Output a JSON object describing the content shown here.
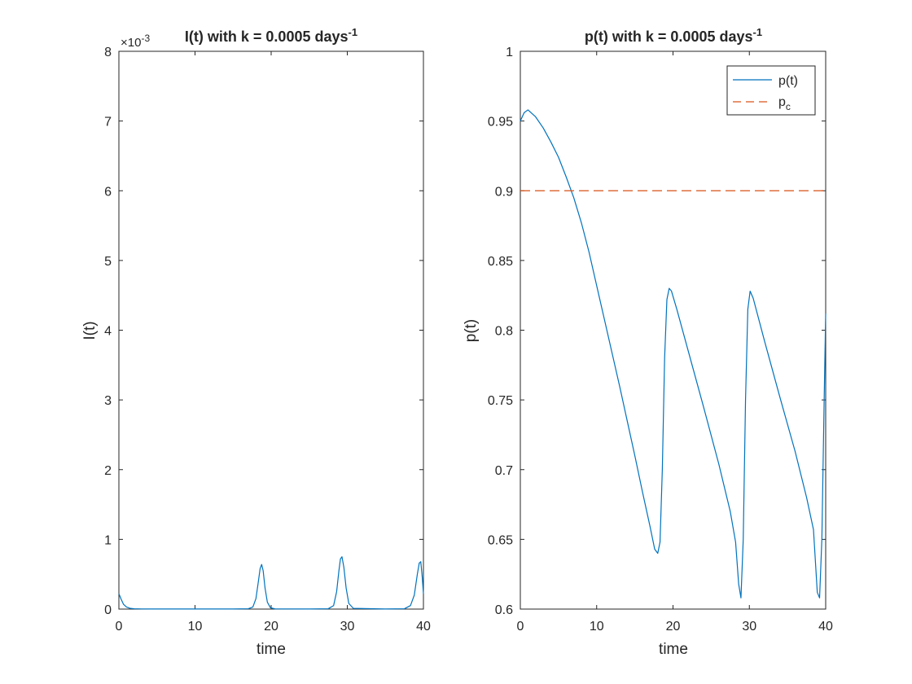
{
  "chart_data": [
    {
      "type": "line",
      "title_main": "I(t) with k = 0.0005 days",
      "title_sup": "-1",
      "xlabel": "time",
      "ylabel": "I(t)",
      "exponent_label": "×10",
      "exponent_sup": "-3",
      "xlim": [
        0,
        40
      ],
      "ylim": [
        0,
        8
      ],
      "xticks": [
        0,
        10,
        20,
        30,
        40
      ],
      "yticks": [
        0,
        1,
        2,
        3,
        4,
        5,
        6,
        7,
        8
      ],
      "grid": false,
      "y_scale_note": "values in units of 1e-3",
      "series": [
        {
          "color": "#0072BD",
          "x": [
            0,
            0.3,
            0.6,
            1.0,
            1.5,
            2.0,
            3.0,
            4.0,
            5.0,
            10.0,
            15.0,
            17.0,
            17.6,
            18.0,
            18.3,
            18.55,
            18.75,
            18.95,
            19.2,
            19.5,
            19.9,
            20.5,
            25.0,
            27.5,
            28.2,
            28.6,
            28.9,
            29.1,
            29.3,
            29.55,
            29.85,
            30.2,
            30.8,
            35.0,
            37.5,
            38.3,
            38.8,
            39.2,
            39.45,
            39.65,
            39.85,
            40.0
          ],
          "y": [
            0.22,
            0.14,
            0.07,
            0.03,
            0.01,
            0.005,
            0.002,
            0.001,
            0.001,
            0.001,
            0.001,
            0.005,
            0.03,
            0.15,
            0.38,
            0.58,
            0.64,
            0.55,
            0.3,
            0.1,
            0.02,
            0.003,
            0.001,
            0.005,
            0.05,
            0.25,
            0.55,
            0.72,
            0.75,
            0.6,
            0.3,
            0.08,
            0.01,
            0.001,
            0.005,
            0.05,
            0.2,
            0.5,
            0.66,
            0.68,
            0.45,
            0.22
          ]
        }
      ]
    },
    {
      "type": "line",
      "title_main": "p(t) with k = 0.0005 days",
      "title_sup": "-1",
      "xlabel": "time",
      "ylabel": "p(t)",
      "xlim": [
        0,
        40
      ],
      "ylim": [
        0.6,
        1
      ],
      "xticks": [
        0,
        10,
        20,
        30,
        40
      ],
      "yticks": [
        0.6,
        0.65,
        0.7,
        0.75,
        0.8,
        0.85,
        0.9,
        0.95,
        1
      ],
      "ytick_labels": [
        "0.6",
        "0.65",
        "0.7",
        "0.75",
        "0.8",
        "0.85",
        "0.9",
        "0.95",
        "1"
      ],
      "grid": false,
      "legend_position": "top-right",
      "series": [
        {
          "name": "p(t)",
          "color": "#0072BD",
          "style": "solid",
          "x": [
            0,
            0.5,
            1.0,
            2.0,
            3.0,
            4.0,
            5.0,
            6.0,
            7.0,
            8.0,
            9.0,
            10.0,
            11.0,
            12.0,
            13.0,
            14.0,
            15.0,
            16.0,
            17.0,
            17.6,
            18.0,
            18.3,
            18.6,
            18.9,
            19.2,
            19.5,
            19.8,
            20.5,
            22.0,
            24.0,
            26.0,
            27.5,
            28.2,
            28.6,
            28.9,
            29.2,
            29.5,
            29.8,
            30.1,
            30.5,
            32.0,
            34.0,
            36.0,
            37.5,
            38.4,
            38.9,
            39.2,
            39.5,
            39.8,
            40.0
          ],
          "y": [
            0.95,
            0.956,
            0.958,
            0.953,
            0.945,
            0.935,
            0.924,
            0.91,
            0.895,
            0.877,
            0.856,
            0.832,
            0.808,
            0.784,
            0.76,
            0.735,
            0.71,
            0.684,
            0.659,
            0.643,
            0.64,
            0.648,
            0.7,
            0.78,
            0.822,
            0.83,
            0.828,
            0.815,
            0.785,
            0.745,
            0.704,
            0.67,
            0.648,
            0.618,
            0.608,
            0.65,
            0.75,
            0.815,
            0.828,
            0.823,
            0.792,
            0.752,
            0.713,
            0.68,
            0.657,
            0.612,
            0.608,
            0.65,
            0.75,
            0.812
          ]
        },
        {
          "name": "p_c",
          "legend_main": "p",
          "legend_sub": "c",
          "color": "#D95319",
          "style": "dashed",
          "x": [
            0,
            40
          ],
          "y": [
            0.9,
            0.9
          ]
        }
      ]
    }
  ]
}
